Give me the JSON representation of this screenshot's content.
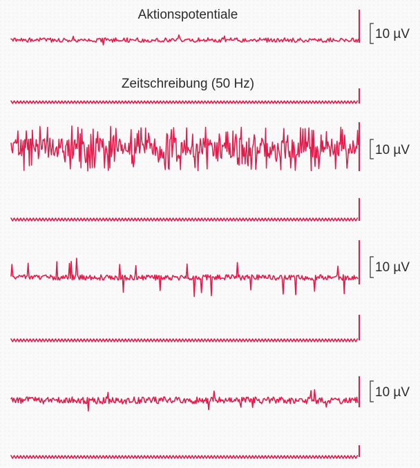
{
  "chart_data": {
    "type": "line",
    "labels": {
      "action_potentials": "Aktionspotentiale",
      "time_marker": "Zeitschreibung (50 Hz)"
    },
    "scale_bar": "10 µV",
    "time_marker_frequency_hz": 50,
    "trace_color": "#e31a4a",
    "panels": [
      {
        "name": "panel-1",
        "activity": "low",
        "scale_label": "10 µV"
      },
      {
        "name": "panel-2",
        "activity": "very-high",
        "scale_label": "10 µV"
      },
      {
        "name": "panel-3",
        "activity": "spikes",
        "scale_label": "10 µV"
      },
      {
        "name": "panel-4",
        "activity": "low-moderate",
        "scale_label": "10 µV"
      }
    ]
  }
}
